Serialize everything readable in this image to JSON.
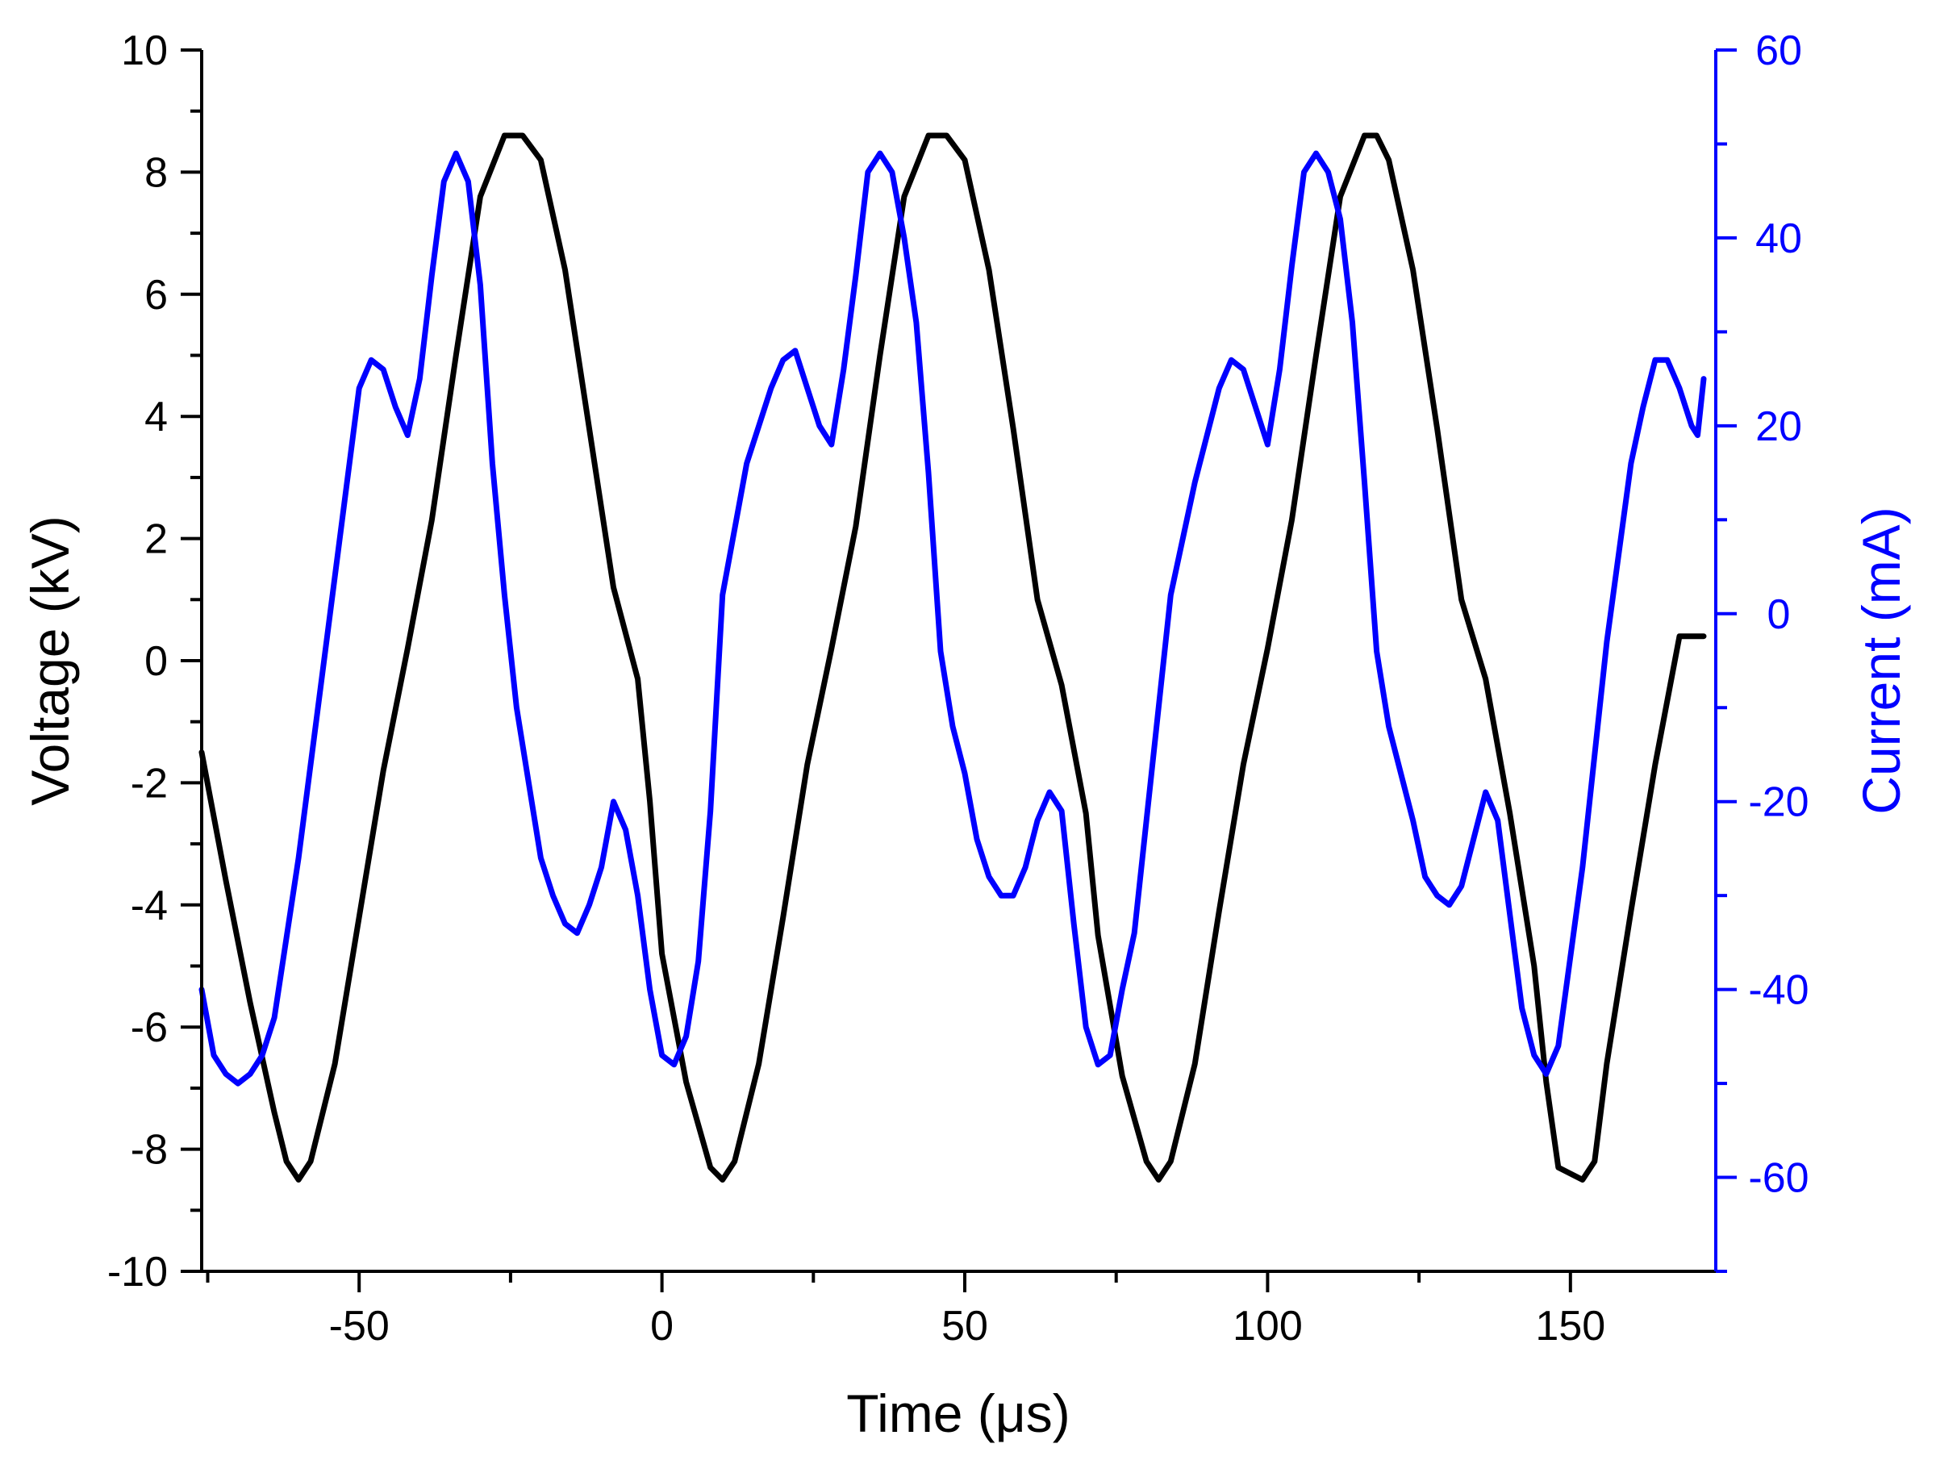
{
  "chart_data": {
    "type": "line",
    "xlabel": "Time (μs)",
    "ylabel": "Voltage (kV)",
    "y2label": "Current (mA)",
    "xlim": [
      -76,
      174
    ],
    "ylim": [
      -10,
      10
    ],
    "y2lim": [
      -70,
      60
    ],
    "x_ticks": [
      -50,
      0,
      50,
      100,
      150
    ],
    "x_tick_labels": [
      "-50",
      "0",
      "50",
      "100",
      "150"
    ],
    "y_ticks": [
      -10,
      -8,
      -6,
      -4,
      -2,
      0,
      2,
      4,
      6,
      8,
      10
    ],
    "y_tick_labels": [
      "-10",
      "-8",
      "-6",
      "-4",
      "-2",
      "0",
      "2",
      "4",
      "6",
      "8",
      "10"
    ],
    "y2_ticks": [
      -60,
      -40,
      -20,
      0,
      20,
      40,
      60
    ],
    "y2_tick_labels": [
      "-60",
      "-40",
      "-20",
      "0",
      "20",
      "40",
      "60"
    ],
    "grid": false,
    "legend": "none",
    "colors": {
      "voltage": "#000000",
      "current": "#0000ff",
      "axis": "#000000",
      "right_axis": "#0000ff"
    },
    "series": [
      {
        "axis": "left",
        "color": "#000000",
        "x": [
          -76,
          -72,
          -68,
          -64,
          -62,
          -60,
          -58,
          -54,
          -50,
          -46,
          -42,
          -38,
          -34,
          -30,
          -26,
          -23,
          -20,
          -16,
          -12,
          -8,
          -4,
          -2,
          0,
          4,
          8,
          10,
          12,
          16,
          20,
          24,
          28,
          32,
          36,
          40,
          44,
          47,
          50,
          54,
          58,
          62,
          66,
          70,
          72,
          76,
          80,
          82,
          84,
          88,
          92,
          96,
          100,
          104,
          108,
          112,
          116,
          118,
          120,
          124,
          128,
          132,
          136,
          140,
          144,
          146,
          148,
          152,
          154,
          156,
          160,
          164,
          168,
          172
        ],
        "y": [
          -1.5,
          -3.6,
          -5.6,
          -7.4,
          -8.2,
          -8.5,
          -8.2,
          -6.6,
          -4.2,
          -1.8,
          0.2,
          2.3,
          5.0,
          7.6,
          8.6,
          8.6,
          8.2,
          6.4,
          3.8,
          1.2,
          -0.3,
          -2.3,
          -4.8,
          -6.9,
          -8.3,
          -8.5,
          -8.2,
          -6.6,
          -4.2,
          -1.7,
          0.2,
          2.2,
          5.0,
          7.6,
          8.6,
          8.6,
          8.2,
          6.4,
          3.8,
          1.0,
          -0.4,
          -2.5,
          -4.5,
          -6.8,
          -8.2,
          -8.5,
          -8.2,
          -6.6,
          -4.1,
          -1.7,
          0.2,
          2.3,
          5.0,
          7.6,
          8.6,
          8.6,
          8.2,
          6.4,
          3.8,
          1.0,
          -0.3,
          -2.5,
          -5.0,
          -6.9,
          -8.3,
          -8.5,
          -8.2,
          -6.6,
          -4.1,
          -1.7,
          0.4,
          0.4
        ]
      },
      {
        "axis": "right",
        "color": "#0000ff",
        "x": [
          -76,
          -74,
          -72,
          -70,
          -68,
          -66,
          -64,
          -60,
          -56,
          -52,
          -50,
          -48,
          -46,
          -44,
          -42,
          -40,
          -38,
          -36,
          -34,
          -32,
          -30,
          -28,
          -26,
          -24,
          -22,
          -20,
          -18,
          -16,
          -14,
          -12,
          -10,
          -8,
          -6,
          -4,
          -2,
          0,
          2,
          4,
          6,
          8,
          10,
          14,
          18,
          20,
          22,
          24,
          26,
          28,
          30,
          32,
          34,
          36,
          38,
          40,
          42,
          44,
          46,
          48,
          50,
          52,
          54,
          56,
          58,
          60,
          62,
          64,
          66,
          68,
          70,
          72,
          74,
          76,
          78,
          80,
          84,
          88,
          92,
          94,
          96,
          98,
          100,
          102,
          104,
          106,
          108,
          110,
          112,
          114,
          116,
          118,
          120,
          122,
          124,
          126,
          128,
          130,
          132,
          134,
          136,
          138,
          140,
          142,
          144,
          146,
          148,
          152,
          156,
          160,
          162,
          164,
          166,
          168,
          170,
          171,
          172
        ],
        "y": [
          -40,
          -47,
          -49,
          -50,
          -49,
          -47,
          -43,
          -26,
          -6,
          14,
          24,
          27,
          26,
          22,
          19,
          25,
          36,
          46,
          49,
          46,
          35,
          16,
          2,
          -10,
          -18,
          -26,
          -30,
          -33,
          -34,
          -31,
          -27,
          -20,
          -23,
          -30,
          -40,
          -47,
          -48,
          -45,
          -37,
          -21,
          2,
          16,
          24,
          27,
          28,
          24,
          20,
          18,
          26,
          36,
          47,
          49,
          47,
          40,
          31,
          15,
          -4,
          -12,
          -17,
          -24,
          -28,
          -30,
          -30,
          -27,
          -22,
          -19,
          -21,
          -33,
          -44,
          -48,
          -47,
          -40,
          -34,
          -22,
          2,
          14,
          24,
          27,
          26,
          22,
          18,
          26,
          37,
          47,
          49,
          47,
          42,
          31,
          14,
          -4,
          -12,
          -17,
          -22,
          -28,
          -30,
          -31,
          -29,
          -24,
          -19,
          -22,
          -32,
          -42,
          -47,
          -49,
          -46,
          -27,
          -3,
          16,
          22,
          27,
          27,
          24,
          20,
          19,
          25
        ]
      }
    ]
  }
}
